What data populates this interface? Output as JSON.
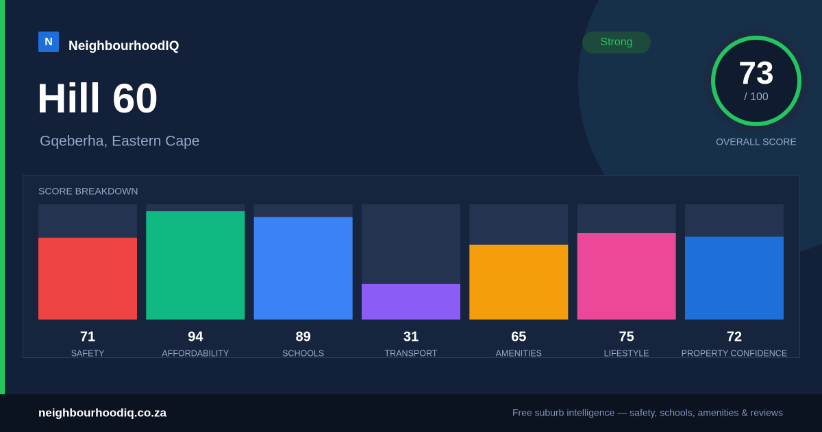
{
  "brand": {
    "logo": "N",
    "name": "NeighbourhoodIQ"
  },
  "header": {
    "title": "Hill 60",
    "subtitle": "Gqeberha, Eastern Cape"
  },
  "badge": "Strong",
  "overall": {
    "score": "73",
    "out_of": "/ 100",
    "label": "OVERALL SCORE"
  },
  "chart_data": {
    "type": "bar",
    "title": "SCORE BREAKDOWN",
    "categories": [
      "SAFETY",
      "AFFORDABILITY",
      "SCHOOLS",
      "TRANSPORT",
      "AMENITIES",
      "LIFESTYLE",
      "PROPERTY CONFIDENCE"
    ],
    "values": [
      71,
      94,
      89,
      31,
      65,
      75,
      72
    ],
    "colors": [
      "#ef4444",
      "#10b981",
      "#3b82f6",
      "#8b5cf6",
      "#f59e0b",
      "#ec4899",
      "#1d6fdc"
    ],
    "ylim": [
      0,
      100
    ]
  },
  "footer": {
    "site": "neighbourhoodiq.co.za",
    "tagline": "Free suburb intelligence — safety, schools, amenities & reviews"
  }
}
